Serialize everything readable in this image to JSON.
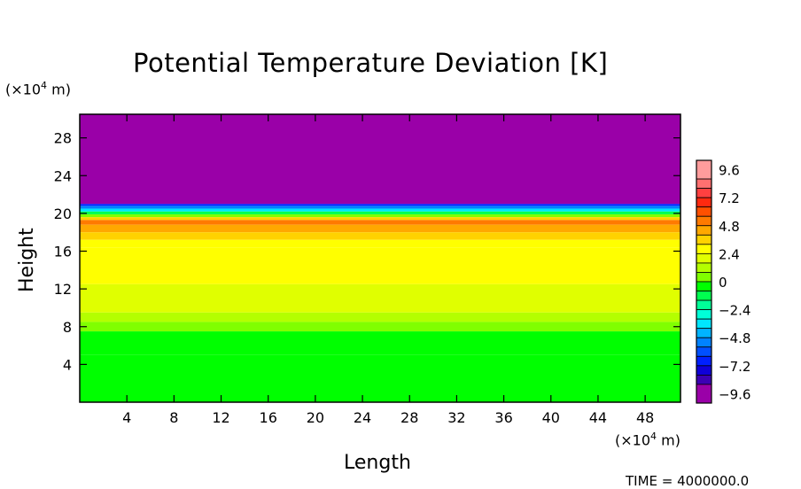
{
  "chart_data": {
    "type": "heatmap",
    "title": "Potential Temperature Deviation [K]",
    "xlabel": "Length",
    "ylabel": "Height",
    "x_unit_prefix": "(×10",
    "x_unit_exp": "4",
    "x_unit_suffix": " m)",
    "y_unit_prefix": "(×10",
    "y_unit_exp": "4",
    "y_unit_suffix": " m)",
    "xlim": [
      0,
      51
    ],
    "ylim": [
      0,
      30.5
    ],
    "x_ticks": [
      4,
      8,
      12,
      16,
      20,
      24,
      28,
      32,
      36,
      40,
      44,
      48
    ],
    "x_tick_labels": [
      "4",
      "8",
      "12",
      "16",
      "20",
      "24",
      "28",
      "32",
      "36",
      "40",
      "44",
      "48"
    ],
    "y_ticks": [
      4,
      8,
      12,
      16,
      20,
      24,
      28
    ],
    "y_tick_labels": [
      "4",
      "8",
      "12",
      "16",
      "20",
      "24",
      "28"
    ],
    "colorbar": {
      "min": -10.4,
      "max": 10.4,
      "tick_values": [
        9.6,
        7.2,
        4.8,
        2.4,
        0,
        -2.4,
        -4.8,
        -7.2,
        -9.6
      ],
      "tick_labels": [
        "9.6",
        "7.2",
        "4.8",
        "2.4",
        "0",
        "−2.4",
        "−4.8",
        "−7.2",
        "−9.6"
      ],
      "levels": [
        {
          "from": 8.8,
          "to": 10.4,
          "color": "#ff9c9c"
        },
        {
          "from": 8.0,
          "to": 8.8,
          "color": "#ff7070"
        },
        {
          "from": 7.2,
          "to": 8.0,
          "color": "#ff4040"
        },
        {
          "from": 6.4,
          "to": 7.2,
          "color": "#ff2a10"
        },
        {
          "from": 5.6,
          "to": 6.4,
          "color": "#ff5000"
        },
        {
          "from": 4.8,
          "to": 5.6,
          "color": "#ff7a00"
        },
        {
          "from": 4.0,
          "to": 4.8,
          "color": "#ffa800"
        },
        {
          "from": 3.2,
          "to": 4.0,
          "color": "#ffd200"
        },
        {
          "from": 2.4,
          "to": 3.2,
          "color": "#ffff00"
        },
        {
          "from": 1.6,
          "to": 2.4,
          "color": "#e0ff00"
        },
        {
          "from": 0.8,
          "to": 1.6,
          "color": "#b4ff00"
        },
        {
          "from": 0.0,
          "to": 0.8,
          "color": "#80ff00"
        },
        {
          "from": -0.8,
          "to": 0.0,
          "color": "#00ff00"
        },
        {
          "from": -1.6,
          "to": -0.8,
          "color": "#00ff50"
        },
        {
          "from": -2.4,
          "to": -1.6,
          "color": "#00ff98"
        },
        {
          "from": -3.2,
          "to": -2.4,
          "color": "#00ffd8"
        },
        {
          "from": -4.0,
          "to": -3.2,
          "color": "#00e6ff"
        },
        {
          "from": -4.8,
          "to": -4.0,
          "color": "#00b4ff"
        },
        {
          "from": -5.6,
          "to": -4.8,
          "color": "#0082ff"
        },
        {
          "from": -6.4,
          "to": -5.6,
          "color": "#0050ff"
        },
        {
          "from": -7.2,
          "to": -6.4,
          "color": "#0020ff"
        },
        {
          "from": -8.0,
          "to": -7.2,
          "color": "#1000d8"
        },
        {
          "from": -8.8,
          "to": -8.0,
          "color": "#3c00b4"
        },
        {
          "from": -10.4,
          "to": -8.8,
          "color": "#9a00a8"
        }
      ]
    },
    "height_layers": [
      {
        "y0": 21.0,
        "y1": 30.5,
        "value": -10.0
      },
      {
        "y0": 20.8,
        "y1": 21.0,
        "value": -7.0
      },
      {
        "y0": 20.5,
        "y1": 20.8,
        "value": -5.6
      },
      {
        "y0": 20.2,
        "y1": 20.5,
        "value": -3.8
      },
      {
        "y0": 19.9,
        "y1": 20.2,
        "value": -1.2
      },
      {
        "y0": 19.6,
        "y1": 19.9,
        "value": 0.4
      },
      {
        "y0": 19.3,
        "y1": 19.6,
        "value": 3.6
      },
      {
        "y0": 18.8,
        "y1": 19.3,
        "value": 5.4
      },
      {
        "y0": 18.0,
        "y1": 18.8,
        "value": 4.4
      },
      {
        "y0": 17.2,
        "y1": 18.0,
        "value": 3.6
      },
      {
        "y0": 16.4,
        "y1": 17.2,
        "value": 3.1
      },
      {
        "y0": 12.5,
        "y1": 16.4,
        "value": 2.8
      },
      {
        "y0": 9.5,
        "y1": 12.5,
        "value": 2.0
      },
      {
        "y0": 8.5,
        "y1": 9.5,
        "value": 1.2
      },
      {
        "y0": 7.5,
        "y1": 8.5,
        "value": 0.4
      },
      {
        "y0": 5.0,
        "y1": 7.5,
        "value": -0.4
      },
      {
        "y0": 0.0,
        "y1": 5.0,
        "value": -0.5
      }
    ]
  },
  "footer": {
    "time_label": "TIME = 4000000.0"
  }
}
